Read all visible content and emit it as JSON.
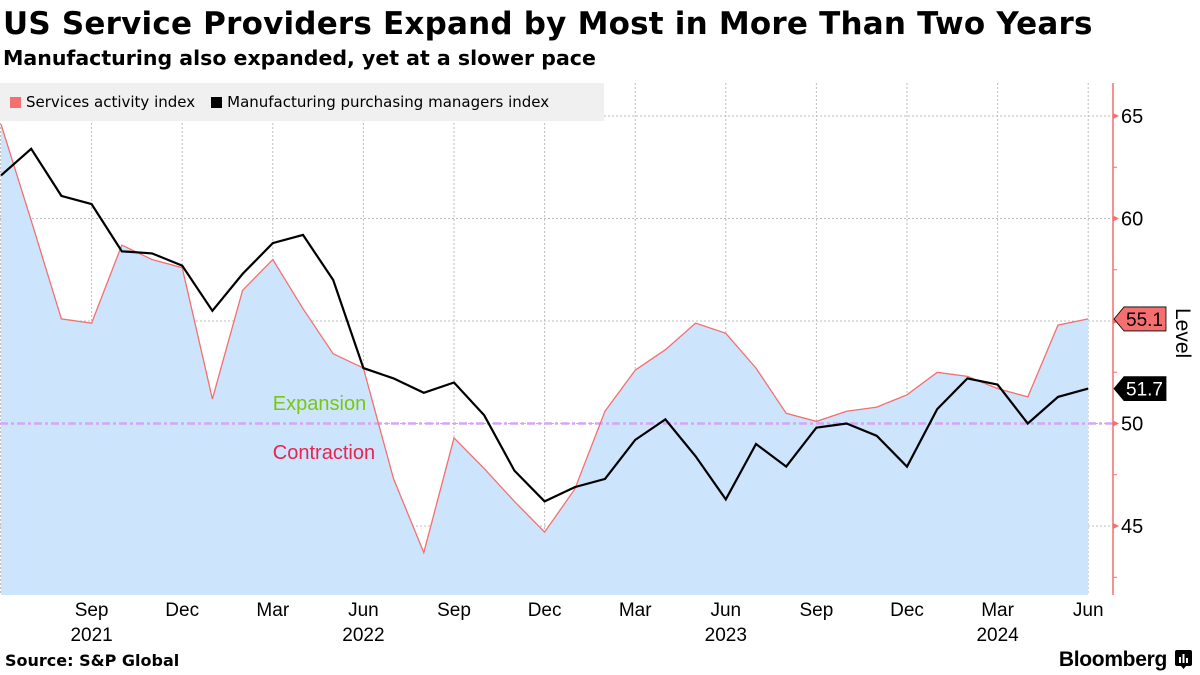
{
  "header": {
    "title": "US Service Providers Expand by Most in More Than Two Years",
    "subtitle": "Manufacturing also expanded, yet at a slower pace"
  },
  "footer": {
    "source": "Source: S&P Global",
    "brand": "Bloomberg"
  },
  "colors": {
    "services_line": "#f56f6f",
    "services_fill": "#cce4fc",
    "manufacturing_line": "#000000",
    "threshold_line": "#d5a6f5",
    "expansion_label": "#7ac70e",
    "contraction_label": "#e8244f",
    "axis_line": "#f56f6f",
    "legend_bg": "#f0f0f0"
  },
  "chart_data": {
    "type": "line",
    "title": "US Service Providers Expand by Most in More Than Two Years",
    "subtitle": "Manufacturing also expanded, yet at a slower pace",
    "xlabel": "",
    "ylabel": "Level",
    "y_axis_side": "right",
    "ylim": [
      41.7,
      66.5
    ],
    "yticks": [
      45,
      50,
      55,
      60,
      65
    ],
    "grid": true,
    "legend_placement": "top-left",
    "x": [
      "Jun 2021",
      "Jul 2021",
      "Aug 2021",
      "Sep 2021",
      "Oct 2021",
      "Nov 2021",
      "Dec 2021",
      "Jan 2022",
      "Feb 2022",
      "Mar 2022",
      "Apr 2022",
      "May 2022",
      "Jun 2022",
      "Jul 2022",
      "Aug 2022",
      "Sep 2022",
      "Oct 2022",
      "Nov 2022",
      "Dec 2022",
      "Jan 2023",
      "Feb 2023",
      "Mar 2023",
      "Apr 2023",
      "May 2023",
      "Jun 2023",
      "Jul 2023",
      "Aug 2023",
      "Sep 2023",
      "Oct 2023",
      "Nov 2023",
      "Dec 2023",
      "Jan 2024",
      "Feb 2024",
      "Mar 2024",
      "Apr 2024",
      "May 2024",
      "Jun 2024"
    ],
    "xticks": [
      {
        "index": 3,
        "label": "Sep",
        "year": "2021"
      },
      {
        "index": 6,
        "label": "Dec",
        "year": ""
      },
      {
        "index": 9,
        "label": "Mar",
        "year": ""
      },
      {
        "index": 12,
        "label": "Jun",
        "year": "2022"
      },
      {
        "index": 15,
        "label": "Sep",
        "year": ""
      },
      {
        "index": 18,
        "label": "Dec",
        "year": ""
      },
      {
        "index": 21,
        "label": "Mar",
        "year": ""
      },
      {
        "index": 24,
        "label": "Jun",
        "year": "2023"
      },
      {
        "index": 27,
        "label": "Sep",
        "year": ""
      },
      {
        "index": 30,
        "label": "Dec",
        "year": ""
      },
      {
        "index": 33,
        "label": "Mar",
        "year": "2024"
      },
      {
        "index": 36,
        "label": "Jun",
        "year": ""
      }
    ],
    "series": [
      {
        "name": "Services activity index",
        "style": "area",
        "values": [
          64.6,
          59.9,
          55.1,
          54.9,
          58.7,
          58.0,
          57.6,
          51.2,
          56.5,
          58.0,
          55.6,
          53.4,
          52.7,
          47.3,
          43.7,
          49.3,
          47.8,
          46.2,
          44.7,
          46.8,
          50.6,
          52.6,
          53.6,
          54.9,
          54.4,
          52.7,
          50.5,
          50.1,
          50.6,
          50.8,
          51.4,
          52.5,
          52.3,
          51.7,
          51.3,
          54.8,
          55.1
        ],
        "last_value_label": "55.1"
      },
      {
        "name": "Manufacturing purchasing managers index",
        "style": "line",
        "values": [
          62.1,
          63.4,
          61.1,
          60.7,
          58.4,
          58.3,
          57.7,
          55.5,
          57.3,
          58.8,
          59.2,
          57.0,
          52.7,
          52.2,
          51.5,
          52.0,
          50.4,
          47.7,
          46.2,
          46.9,
          47.3,
          49.2,
          50.2,
          48.4,
          46.3,
          49.0,
          47.9,
          49.8,
          50.0,
          49.4,
          47.9,
          50.7,
          52.2,
          51.9,
          50.0,
          51.3,
          51.7
        ],
        "last_value_label": "51.7"
      }
    ],
    "reference_line": {
      "value": 50,
      "style": "dash-dot"
    },
    "annotations": [
      {
        "text": "Expansion",
        "x_index": 9,
        "y": 51.0
      },
      {
        "text": "Contraction",
        "x_index": 9,
        "y": 48.6
      }
    ]
  }
}
